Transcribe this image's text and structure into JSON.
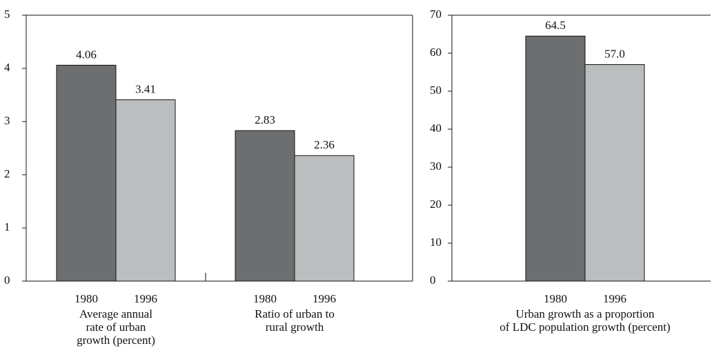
{
  "chart_data": [
    {
      "type": "bar",
      "categories": [
        "Average annual\nrate of urban\ngrowth (percent)",
        "Ratio of urban to\nrural growth"
      ],
      "series": [
        {
          "name": "1980",
          "color": "#6d6e70",
          "values": [
            4.06,
            2.83
          ]
        },
        {
          "name": "1996",
          "color": "#bcbdbf",
          "values": [
            3.41,
            2.36
          ]
        }
      ],
      "ylim": [
        0,
        5
      ],
      "yticks": [
        0,
        1,
        2,
        3,
        4,
        5
      ]
    },
    {
      "type": "bar",
      "categories": [
        "Urban growth as a proportion\nof LDC population growth (percent)"
      ],
      "series": [
        {
          "name": "1980",
          "color": "#6d6e70",
          "values": [
            64.5
          ]
        },
        {
          "name": "1996",
          "color": "#bcbdbf",
          "values": [
            57.0
          ],
          "value_labels": [
            "57.0"
          ]
        }
      ],
      "ylim": [
        0,
        70
      ],
      "yticks": [
        0,
        10,
        20,
        30,
        40,
        50,
        60,
        70
      ]
    }
  ]
}
